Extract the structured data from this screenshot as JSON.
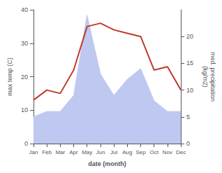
{
  "chart_data": {
    "type": "line",
    "categories": [
      "Jan",
      "Feb",
      "Mar",
      "Apr",
      "May",
      "Jun",
      "Jul",
      "Aug",
      "Sep",
      "Oct",
      "Nov",
      "Dec"
    ],
    "series": [
      {
        "type": "area",
        "color": "#bfc8f0",
        "axis": "y2",
        "values": [
          5,
          6,
          6,
          9,
          24,
          13,
          9,
          12,
          14,
          8,
          6,
          6
        ]
      },
      {
        "type": "line",
        "color": "#c0392b",
        "axis": "y",
        "values": [
          13,
          16,
          15,
          22,
          35,
          36,
          34,
          33,
          32,
          22,
          23,
          16
        ]
      }
    ],
    "xlabel": "date (month)",
    "ylabel": "max temp (C)",
    "y2label": "med. precipitation\n(kg/m2)",
    "ylim": [
      0,
      40
    ],
    "yticks": [
      0,
      10,
      20,
      30,
      40
    ],
    "y2lim": [
      0,
      25
    ],
    "y2ticks": [
      0,
      5,
      10,
      15,
      20
    ],
    "grid": false
  }
}
